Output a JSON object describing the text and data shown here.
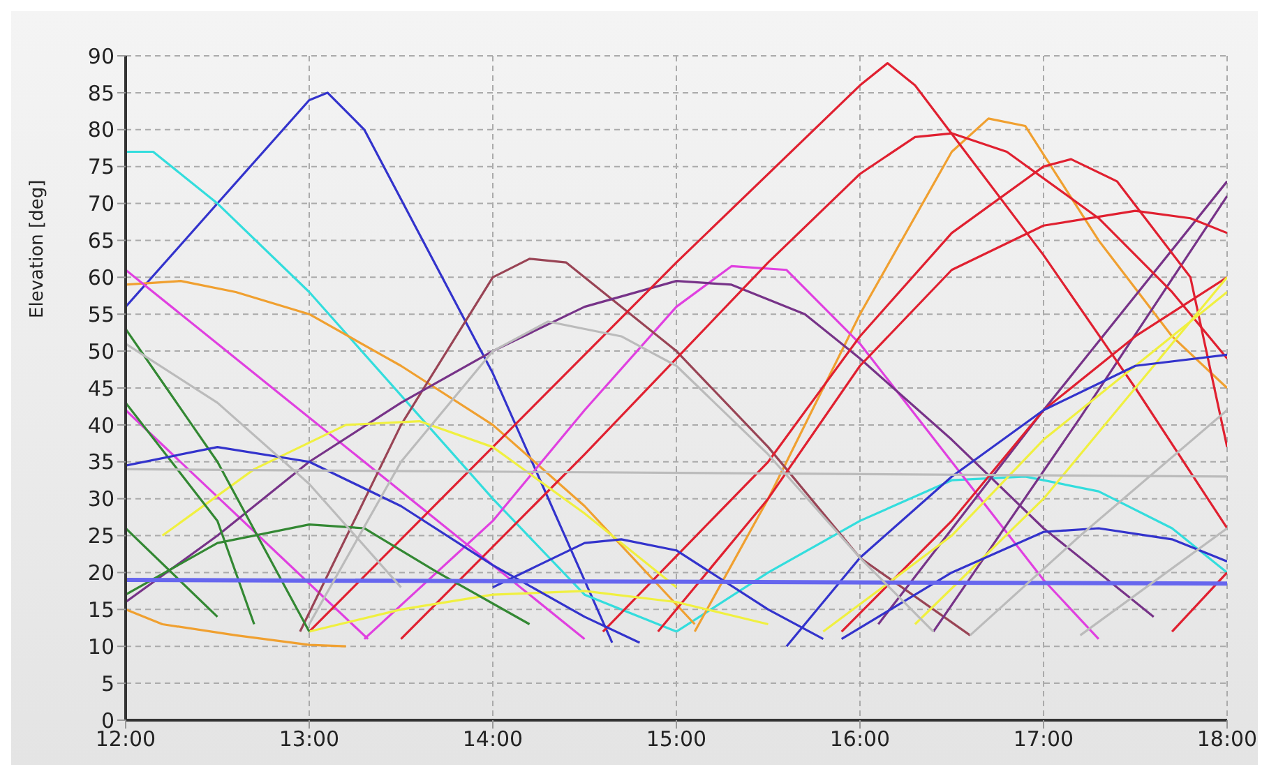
{
  "chart_data": {
    "type": "line",
    "ylabel": "Elevation [deg]",
    "xlim": [
      12,
      18
    ],
    "ylim": [
      0,
      90
    ],
    "xticks": [
      {
        "value": 12,
        "label": "12:00"
      },
      {
        "value": 13,
        "label": "13:00"
      },
      {
        "value": 14,
        "label": "14:00"
      },
      {
        "value": 15,
        "label": "15:00"
      },
      {
        "value": 16,
        "label": "16:00"
      },
      {
        "value": 17,
        "label": "17:00"
      },
      {
        "value": 18,
        "label": "18:00"
      }
    ],
    "yticks": [
      0,
      5,
      10,
      15,
      20,
      25,
      30,
      35,
      40,
      45,
      50,
      55,
      60,
      65,
      70,
      75,
      80,
      85,
      90
    ],
    "grid": true,
    "marker": "none",
    "line_style": "solid",
    "series": [
      {
        "color": "#3333cc",
        "x": [
          12,
          12.5,
          13,
          13.1,
          13.3,
          14,
          14.65
        ],
        "values": [
          56,
          70,
          84,
          85,
          80,
          47,
          10.5
        ]
      },
      {
        "color": "#33dddd",
        "x": [
          12,
          12.15,
          12.5,
          13,
          14,
          14.5,
          15
        ],
        "values": [
          77,
          77,
          70,
          58,
          30,
          17,
          12
        ]
      },
      {
        "color": "#33dddd",
        "x": [
          15,
          15.5,
          16,
          16.5,
          16.9,
          17.3,
          17.7,
          18
        ],
        "values": [
          12,
          20,
          27,
          32.5,
          33,
          31,
          26,
          20
        ]
      },
      {
        "color": "#f0a030",
        "x": [
          12,
          12.3,
          12.6,
          13,
          13.5,
          14,
          14.5,
          15.1
        ],
        "values": [
          59,
          59.5,
          58,
          55,
          48,
          40,
          29,
          13
        ]
      },
      {
        "color": "#f0a030",
        "x": [
          15.1,
          15.5,
          16,
          16.5,
          16.7,
          16.9,
          17.3,
          17.7,
          18
        ],
        "values": [
          12,
          30,
          55,
          77,
          81.5,
          80.5,
          65,
          52,
          45
        ]
      },
      {
        "color": "#f0a030",
        "x": [
          12,
          12.2,
          12.6,
          13,
          13.2
        ],
        "values": [
          15,
          13,
          11.5,
          10.2,
          10
        ]
      },
      {
        "color": "#e040e0",
        "x": [
          12,
          12.9,
          14.5
        ],
        "values": [
          61,
          43,
          11
        ]
      },
      {
        "color": "#e040e0",
        "x": [
          12,
          13.32
        ],
        "values": [
          42,
          11
        ]
      },
      {
        "color": "#e040e0",
        "x": [
          13.3,
          14,
          14.5,
          15,
          15.3,
          15.6,
          16,
          16.5,
          17,
          17.3
        ],
        "values": [
          11,
          27,
          42,
          56,
          61.5,
          61,
          51,
          35,
          19,
          11
        ]
      },
      {
        "color": "#994455",
        "x": [
          12.95,
          13.5,
          14,
          14.2,
          14.4,
          15,
          15.5,
          16,
          16.6
        ],
        "values": [
          12,
          40,
          60,
          62.5,
          62,
          50,
          37,
          22,
          11.5
        ]
      },
      {
        "color": "#773388",
        "x": [
          12,
          12.5,
          13,
          13.5,
          14,
          14.5,
          15,
          15.3,
          15.7,
          16,
          16.5,
          17,
          17.6
        ],
        "values": [
          16,
          25,
          35,
          43,
          50,
          56,
          59.5,
          59,
          55,
          49,
          38,
          26,
          14
        ]
      },
      {
        "color": "#773388",
        "x": [
          16.1,
          17,
          18
        ],
        "values": [
          13,
          42,
          73
        ]
      },
      {
        "color": "#773388",
        "x": [
          16.4,
          17.2,
          18
        ],
        "values": [
          12,
          41,
          71
        ]
      },
      {
        "color": "#e02030",
        "x": [
          13,
          14,
          15,
          16,
          16.15,
          16.3,
          17,
          17.5,
          18
        ],
        "values": [
          12,
          37,
          62,
          86,
          89,
          86,
          63,
          45,
          26
        ]
      },
      {
        "color": "#e02030",
        "x": [
          13.5,
          14.5,
          15.5,
          16,
          16.3,
          16.5,
          16.8,
          17.3,
          17.7,
          18
        ],
        "values": [
          11,
          36,
          62,
          74,
          79,
          79.5,
          77,
          68,
          58,
          49
        ]
      },
      {
        "color": "#e02030",
        "x": [
          14.6,
          15.5,
          16,
          16.5,
          17,
          17.15,
          17.4,
          17.8,
          18
        ],
        "values": [
          12,
          35,
          52,
          66,
          75,
          76,
          73,
          60,
          37
        ]
      },
      {
        "color": "#e02030",
        "x": [
          14.9,
          15.5,
          16,
          16.5,
          17,
          17.5,
          17.8,
          18
        ],
        "values": [
          12,
          30,
          48,
          61,
          67,
          69,
          68,
          66
        ]
      },
      {
        "color": "#e02030",
        "x": [
          15.9,
          16.5,
          17,
          17.5,
          18
        ],
        "values": [
          12,
          27,
          42,
          52,
          60
        ]
      },
      {
        "color": "#e02030",
        "x": [
          17.7,
          18
        ],
        "values": [
          12,
          20
        ]
      },
      {
        "color": "#f0f040",
        "x": [
          12.2,
          12.7,
          13.2,
          13.6,
          14,
          14.5,
          15
        ],
        "values": [
          25,
          34,
          40,
          40.5,
          37,
          28,
          18
        ]
      },
      {
        "color": "#f0f040",
        "x": [
          13,
          13.5,
          14,
          14.5,
          15,
          15.5
        ],
        "values": [
          12,
          15,
          17,
          17.5,
          16,
          13
        ]
      },
      {
        "color": "#f0f040",
        "x": [
          16.3,
          17,
          17.5,
          18
        ],
        "values": [
          13,
          30,
          45,
          60
        ]
      },
      {
        "color": "#f0f040",
        "x": [
          15.8,
          16.5,
          17,
          18
        ],
        "values": [
          12,
          25,
          38,
          58
        ]
      },
      {
        "color": "#338833",
        "x": [
          12,
          12.5,
          13
        ],
        "values": [
          53,
          35,
          12
        ]
      },
      {
        "color": "#338833",
        "x": [
          12,
          12.5,
          12.7
        ],
        "values": [
          43,
          27,
          13
        ]
      },
      {
        "color": "#338833",
        "x": [
          12,
          12.5
        ],
        "values": [
          26,
          14
        ]
      },
      {
        "color": "#338833",
        "x": [
          12,
          12.5,
          13,
          13.3,
          13.7,
          14.2
        ],
        "values": [
          17,
          24,
          26.5,
          26,
          20,
          13
        ]
      },
      {
        "color": "#3333cc",
        "x": [
          12,
          12.5,
          13,
          13.5,
          14,
          14.5,
          14.8
        ],
        "values": [
          34.5,
          37,
          35,
          29,
          21,
          14,
          10.5
        ]
      },
      {
        "color": "#3333cc",
        "x": [
          14,
          14.5,
          14.7,
          15,
          15.5,
          15.8
        ],
        "values": [
          18,
          24,
          24.5,
          23,
          15,
          11
        ]
      },
      {
        "color": "#3333cc",
        "x": [
          15.9,
          16.5,
          17,
          17.3,
          17.7,
          18
        ],
        "values": [
          11,
          20,
          25.5,
          26,
          24.5,
          21.5
        ]
      },
      {
        "color": "#3333cc",
        "x": [
          15.6,
          16,
          16.5,
          17,
          17.5,
          18
        ],
        "values": [
          10,
          22,
          33,
          42,
          48,
          49.5
        ]
      },
      {
        "color": "#6666ee",
        "x": [
          12,
          18
        ],
        "values": [
          19,
          18.5
        ]
      },
      {
        "color": "#bbbbbb",
        "x": [
          12,
          18
        ],
        "values": [
          34,
          33
        ]
      },
      {
        "color": "#bbbbbb",
        "x": [
          12,
          12.5,
          13,
          13.5
        ],
        "values": [
          51,
          43,
          32,
          18
        ]
      },
      {
        "color": "#bbbbbb",
        "x": [
          13,
          13.5,
          14,
          14.3,
          14.7,
          15,
          15.5,
          16,
          16.4
        ],
        "values": [
          13,
          35,
          50,
          54,
          52,
          48,
          36,
          22,
          12
        ]
      },
      {
        "color": "#bbbbbb",
        "x": [
          16.6,
          17.2,
          18
        ],
        "values": [
          11.5,
          25,
          42
        ]
      },
      {
        "color": "#bbbbbb",
        "x": [
          17.2,
          18
        ],
        "values": [
          11.5,
          26
        ]
      }
    ]
  }
}
